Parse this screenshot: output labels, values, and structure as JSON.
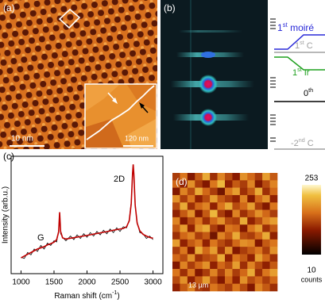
{
  "panel_a": {
    "label": "(a)",
    "scale_bar": "10 nm",
    "inset_scale_bar": "120 nm"
  },
  "panel_b": {
    "label": "(b)",
    "levels": [
      {
        "num": "1",
        "sup": "st",
        "text": " moiré",
        "color": "#2a2ad8"
      },
      {
        "num": "1",
        "sup": "st",
        "text": " C",
        "color": "#a0a0a0"
      },
      {
        "num": "1",
        "sup": "st",
        "text": " Ir",
        "color": "#1fa01f"
      },
      {
        "num": "0",
        "sup": "th",
        "text": "",
        "color": "#000000"
      },
      {
        "num": "-2",
        "sup": "nd",
        "text": " C",
        "color": "#a0a0a0"
      }
    ]
  },
  "chart_data": {
    "type": "line",
    "label": "(c)",
    "x_label": {
      "text": "Raman shift (cm",
      "sup": "-1",
      "end": ")"
    },
    "y_label": "Intensity (arb.u.)",
    "annotations": [
      "G",
      "2D"
    ],
    "x": [
      1000,
      1050,
      1100,
      1150,
      1200,
      1250,
      1300,
      1350,
      1400,
      1450,
      1500,
      1540,
      1570,
      1585,
      1600,
      1630,
      1680,
      1750,
      1800,
      1850,
      1900,
      1950,
      2000,
      2050,
      2100,
      2150,
      2200,
      2250,
      2300,
      2350,
      2400,
      2450,
      2500,
      2550,
      2600,
      2640,
      2670,
      2690,
      2700,
      2710,
      2730,
      2760,
      2800,
      2850,
      2900,
      2950,
      3000
    ],
    "series": [
      {
        "color": "#000000",
        "values": [
          0.14,
          0.13,
          0.18,
          0.16,
          0.21,
          0.19,
          0.24,
          0.21,
          0.26,
          0.24,
          0.28,
          0.27,
          0.37,
          0.52,
          0.34,
          0.31,
          0.28,
          0.32,
          0.29,
          0.33,
          0.3,
          0.34,
          0.31,
          0.35,
          0.32,
          0.36,
          0.33,
          0.37,
          0.34,
          0.38,
          0.35,
          0.39,
          0.36,
          0.4,
          0.39,
          0.46,
          0.61,
          0.86,
          0.93,
          0.83,
          0.57,
          0.44,
          0.35,
          0.34,
          0.3,
          0.32,
          0.29
        ]
      },
      {
        "color": "#c00000",
        "values": [
          0.135,
          0.15,
          0.165,
          0.18,
          0.195,
          0.21,
          0.22,
          0.23,
          0.245,
          0.255,
          0.268,
          0.29,
          0.355,
          0.523,
          0.36,
          0.305,
          0.295,
          0.302,
          0.306,
          0.311,
          0.316,
          0.321,
          0.326,
          0.331,
          0.337,
          0.342,
          0.347,
          0.353,
          0.358,
          0.364,
          0.37,
          0.375,
          0.38,
          0.385,
          0.4,
          0.45,
          0.595,
          0.85,
          0.93,
          0.848,
          0.585,
          0.43,
          0.365,
          0.335,
          0.32,
          0.308,
          0.302
        ]
      }
    ],
    "xlim": [
      850,
      3150
    ],
    "ylim": [
      0,
      1
    ],
    "xticks": [
      1000,
      1500,
      2000,
      2500,
      3000
    ]
  },
  "panel_d": {
    "label": "(d)",
    "scale_bar": "13 µm",
    "colorbar_unit": "counts",
    "map": {
      "vmin": 10,
      "vmax": 253,
      "values": [
        [
          120,
          160,
          90,
          140,
          200,
          110,
          170,
          130,
          95,
          180,
          150,
          120,
          190,
          140
        ],
        [
          150,
          100,
          180,
          120,
          90,
          160,
          210,
          100,
          140,
          120,
          170,
          90,
          130,
          170
        ],
        [
          90,
          170,
          130,
          200,
          150,
          120,
          80,
          160,
          190,
          110,
          140,
          200,
          110,
          150
        ],
        [
          180,
          120,
          160,
          100,
          130,
          190,
          140,
          120,
          100,
          170,
          90,
          150,
          180,
          100
        ],
        [
          130,
          200,
          110,
          150,
          170,
          100,
          160,
          200,
          130,
          150,
          190,
          120,
          90,
          160
        ],
        [
          100,
          140,
          180,
          90,
          140,
          210,
          120,
          90,
          170,
          110,
          140,
          180,
          150,
          120
        ],
        [
          170,
          90,
          130,
          160,
          110,
          150,
          180,
          130,
          120,
          200,
          100,
          130,
          170,
          190
        ],
        [
          140,
          190,
          100,
          180,
          200,
          120,
          90,
          160,
          150,
          90,
          160,
          190,
          110,
          140
        ],
        [
          110,
          150,
          170,
          120,
          140,
          80,
          170,
          140,
          200,
          130,
          120,
          150,
          200,
          100
        ],
        [
          190,
          100,
          140,
          160,
          100,
          160,
          130,
          110,
          150,
          180,
          170,
          90,
          140,
          160
        ],
        [
          120,
          160,
          90,
          200,
          150,
          190,
          110,
          180,
          90,
          120,
          140,
          160,
          120,
          180
        ],
        [
          150,
          130,
          180,
          110,
          130,
          140,
          200,
          100,
          160,
          140,
          100,
          190,
          150,
          110
        ],
        [
          90,
          170,
          120,
          150,
          180,
          100,
          150,
          130,
          190,
          110,
          170,
          130,
          100,
          140
        ],
        [
          160,
          110,
          160,
          90,
          120,
          170,
          120,
          170,
          120,
          150,
          200,
          110,
          160,
          190
        ],
        [
          130,
          180,
          100,
          140,
          190,
          130,
          90,
          150,
          100,
          180,
          130,
          150,
          120,
          150
        ],
        [
          100,
          140,
          170,
          120,
          110,
          160,
          140,
          120,
          160,
          130,
          90,
          170,
          140,
          110
        ]
      ]
    }
  }
}
